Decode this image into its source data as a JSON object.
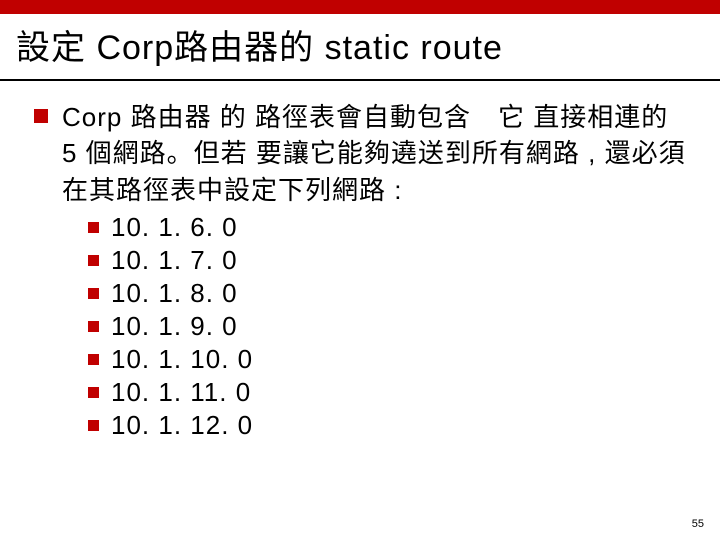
{
  "colors": {
    "accent": "#c00000",
    "text": "#000000",
    "background": "#ffffff"
  },
  "title": "設定 Corp路由器的 static route",
  "main": {
    "text": "Corp 路由器 的 路徑表會自動包含　它 直接相連的 5 個網路。但若 要讓它能夠遶送到所有網路 , 還必須在其路徑表中設定下列網路 :"
  },
  "subitems": [
    {
      "text": "10. 1. 6. 0"
    },
    {
      "text": "10. 1. 7. 0"
    },
    {
      "text": "10. 1. 8. 0"
    },
    {
      "text": "10. 1. 9. 0"
    },
    {
      "text": "10. 1. 10. 0"
    },
    {
      "text": "10. 1. 11. 0"
    },
    {
      "text": "10. 1. 12. 0"
    }
  ],
  "pageNumber": "55",
  "typography": {
    "title_fontsize": 34,
    "body_fontsize": 26,
    "pagenum_fontsize": 11
  }
}
